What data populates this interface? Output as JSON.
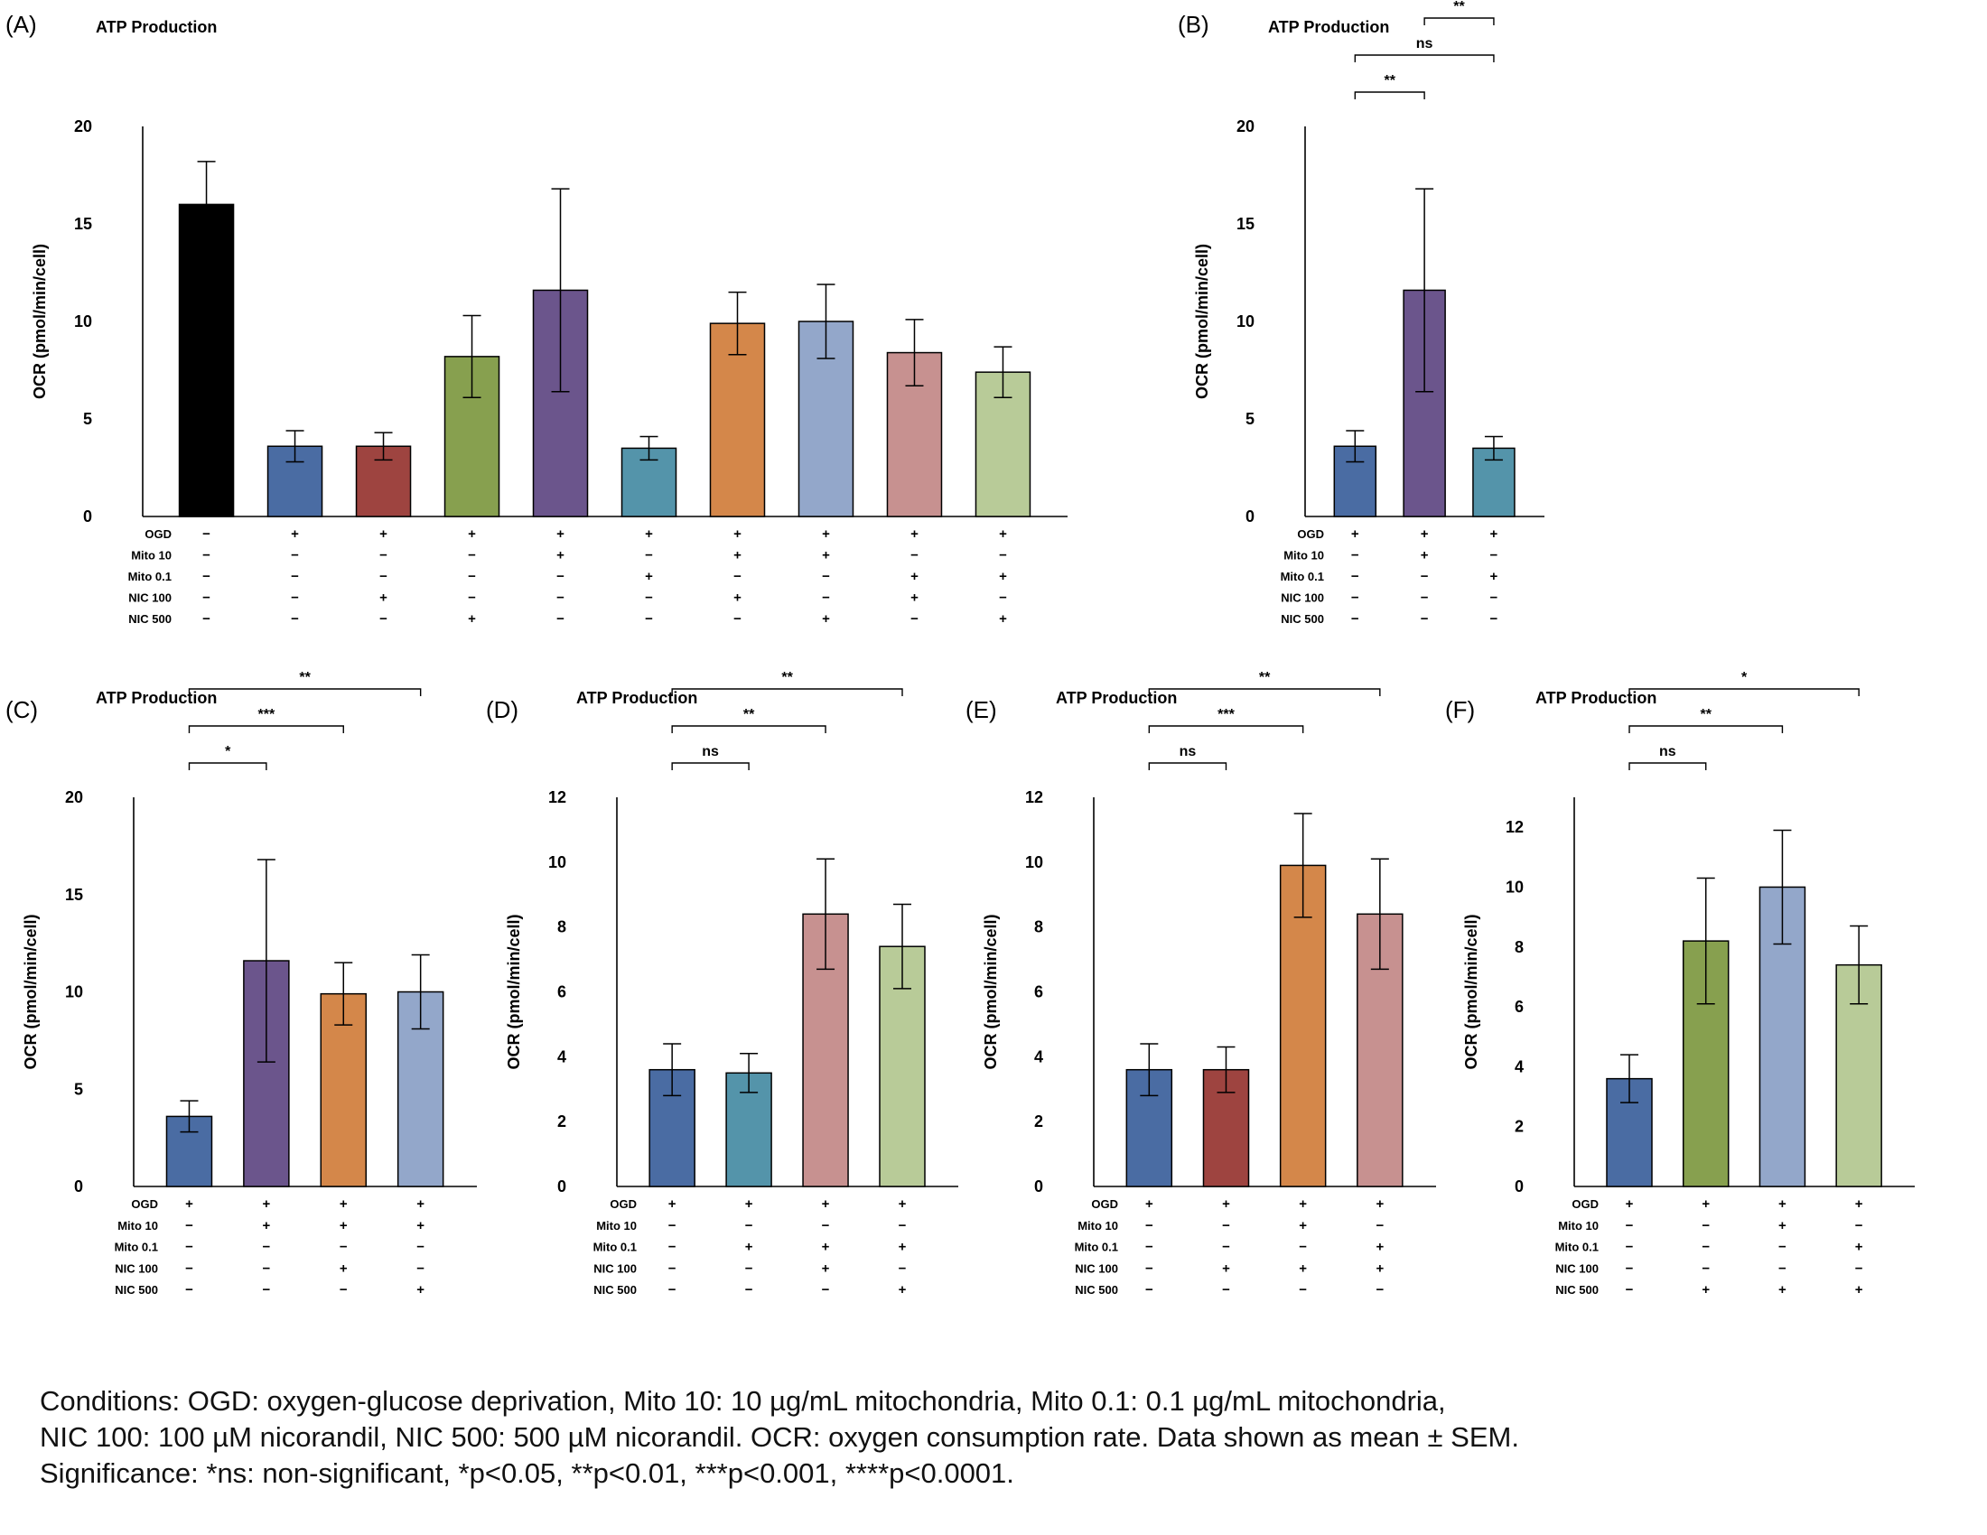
{
  "colors": {
    "Control": "#000000",
    "OGD": "#4a6ca3",
    "OGD+NIC100": "#9e4440",
    "OGD+NIC500": "#87a04f",
    "OGD+Mito10": "#6b558c",
    "OGD+Mito0.1": "#5494aa",
    "OGD+Mito10+NIC100": "#d4874a",
    "OGD+Mito10+NIC500": "#93a7ca",
    "OGD+Mito0.1+NIC100": "#c79190",
    "OGD+Mito0.1+NIC500": "#b8cb98"
  },
  "row_labels": [
    "OGD",
    "Mito 10",
    "Mito 0.1",
    "NIC 100",
    "NIC 500"
  ],
  "caption": {
    "line1": "Conditions: OGD: oxygen-glucose deprivation, Mito 10: 10 µg/mL mitochondria, Mito 0.1: 0.1 µg/mL mitochondria,",
    "line2": "NIC 100: 100 µM nicorandil, NIC 500: 500 µM nicorandil. OCR: oxygen consumption rate. Data shown as mean ± SEM.",
    "line3": "Significance: *ns: non-significant, *p<0.05, **p<0.01, ***p<0.001, ****p<0.0001."
  },
  "chart_data": [
    {
      "id": "A",
      "panel_label": "(A)",
      "type": "bar",
      "title": "ATP Production",
      "xlabel": "",
      "ylabel": "OCR (pmol/min/cell)",
      "ylim": [
        0,
        20
      ],
      "yticks": [
        0,
        5,
        10,
        15,
        20
      ],
      "categories": [
        "Control",
        "OGD",
        "OGD+NIC100",
        "OGD+NIC500",
        "OGD+Mito10",
        "OGD+Mito0.1",
        "OGD+Mito10+NIC100",
        "OGD+Mito10+NIC500",
        "OGD+Mito0.1+NIC100",
        "OGD+Mito0.1+NIC500"
      ],
      "values": [
        16.0,
        3.6,
        3.6,
        8.2,
        11.6,
        3.5,
        9.9,
        10.0,
        8.4,
        7.4
      ],
      "errors": [
        2.2,
        0.8,
        0.7,
        2.1,
        5.2,
        0.6,
        1.6,
        1.9,
        1.7,
        1.3
      ],
      "conditions": [
        [
          "−",
          "−",
          "−",
          "−",
          "−"
        ],
        [
          "+",
          "−",
          "−",
          "−",
          "−"
        ],
        [
          "+",
          "−",
          "−",
          "+",
          "−"
        ],
        [
          "+",
          "−",
          "−",
          "−",
          "+"
        ],
        [
          "+",
          "+",
          "−",
          "−",
          "−"
        ],
        [
          "+",
          "−",
          "+",
          "−",
          "−"
        ],
        [
          "+",
          "+",
          "−",
          "+",
          "−"
        ],
        [
          "+",
          "+",
          "−",
          "−",
          "+"
        ],
        [
          "+",
          "−",
          "+",
          "+",
          "−"
        ],
        [
          "+",
          "−",
          "+",
          "−",
          "+"
        ]
      ],
      "brackets": []
    },
    {
      "id": "B",
      "panel_label": "(B)",
      "type": "bar",
      "title": "ATP Production",
      "xlabel": "",
      "ylabel": "OCR (pmol/min/cell)",
      "ylim": [
        0,
        20
      ],
      "yticks": [
        0,
        5,
        10,
        15,
        20
      ],
      "categories": [
        "OGD",
        "OGD+Mito10",
        "OGD+Mito0.1"
      ],
      "values": [
        3.6,
        11.6,
        3.5
      ],
      "errors": [
        0.8,
        5.2,
        0.6
      ],
      "conditions": [
        [
          "+",
          "−",
          "−",
          "−",
          "−"
        ],
        [
          "+",
          "+",
          "−",
          "−",
          "−"
        ],
        [
          "+",
          "−",
          "+",
          "−",
          "−"
        ]
      ],
      "brackets": [
        {
          "from": 0,
          "to": 1,
          "label": "**"
        },
        {
          "from": 0,
          "to": 2,
          "label": "ns"
        },
        {
          "from": 1,
          "to": 2,
          "label": "**"
        }
      ]
    },
    {
      "id": "C",
      "panel_label": "(C)",
      "type": "bar",
      "title": "ATP Production",
      "xlabel": "",
      "ylabel": "OCR (pmol/min/cell)",
      "ylim": [
        0,
        20
      ],
      "yticks": [
        0,
        5,
        10,
        15,
        20
      ],
      "categories": [
        "OGD",
        "OGD+Mito10",
        "OGD+Mito10+NIC100",
        "OGD+Mito10+NIC500"
      ],
      "values": [
        3.6,
        11.6,
        9.9,
        10.0
      ],
      "errors": [
        0.8,
        5.2,
        1.6,
        1.9
      ],
      "conditions": [
        [
          "+",
          "−",
          "−",
          "−",
          "−"
        ],
        [
          "+",
          "+",
          "−",
          "−",
          "−"
        ],
        [
          "+",
          "+",
          "−",
          "+",
          "−"
        ],
        [
          "+",
          "+",
          "−",
          "−",
          "+"
        ]
      ],
      "brackets": [
        {
          "from": 0,
          "to": 1,
          "label": "*"
        },
        {
          "from": 0,
          "to": 2,
          "label": "***"
        },
        {
          "from": 0,
          "to": 3,
          "label": "**"
        }
      ]
    },
    {
      "id": "D",
      "panel_label": "(D)",
      "type": "bar",
      "title": "ATP Production",
      "xlabel": "",
      "ylabel": "OCR (pmol/min/cell)",
      "ylim": [
        0,
        12
      ],
      "yticks": [
        0,
        2,
        4,
        6,
        8,
        10,
        12
      ],
      "categories": [
        "OGD",
        "OGD+Mito0.1",
        "OGD+Mito0.1+NIC100",
        "OGD+Mito0.1+NIC500"
      ],
      "values": [
        3.6,
        3.5,
        8.4,
        7.4
      ],
      "errors": [
        0.8,
        0.6,
        1.7,
        1.3
      ],
      "conditions": [
        [
          "+",
          "−",
          "−",
          "−",
          "−"
        ],
        [
          "+",
          "−",
          "+",
          "−",
          "−"
        ],
        [
          "+",
          "−",
          "+",
          "+",
          "−"
        ],
        [
          "+",
          "−",
          "+",
          "−",
          "+"
        ]
      ],
      "brackets": [
        {
          "from": 0,
          "to": 1,
          "label": "ns"
        },
        {
          "from": 0,
          "to": 2,
          "label": "**"
        },
        {
          "from": 0,
          "to": 3,
          "label": "**"
        }
      ]
    },
    {
      "id": "E",
      "panel_label": "(E)",
      "type": "bar",
      "title": "ATP Production",
      "xlabel": "",
      "ylabel": "OCR (pmol/min/cell)",
      "ylim": [
        0,
        12
      ],
      "yticks": [
        0,
        2,
        4,
        6,
        8,
        10,
        12
      ],
      "categories": [
        "OGD",
        "OGD+NIC100",
        "OGD+Mito10+NIC100",
        "OGD+Mito0.1+NIC100"
      ],
      "values": [
        3.6,
        3.6,
        9.9,
        8.4
      ],
      "errors": [
        0.8,
        0.7,
        1.6,
        1.7
      ],
      "conditions": [
        [
          "+",
          "−",
          "−",
          "−",
          "−"
        ],
        [
          "+",
          "−",
          "−",
          "+",
          "−"
        ],
        [
          "+",
          "+",
          "−",
          "+",
          "−"
        ],
        [
          "+",
          "−",
          "+",
          "+",
          "−"
        ]
      ],
      "brackets": [
        {
          "from": 0,
          "to": 1,
          "label": "ns"
        },
        {
          "from": 0,
          "to": 2,
          "label": "***"
        },
        {
          "from": 0,
          "to": 3,
          "label": "**"
        }
      ]
    },
    {
      "id": "F",
      "panel_label": "(F)",
      "type": "bar",
      "title": "ATP Production",
      "xlabel": "",
      "ylabel": "OCR (pmol/min/cell)",
      "ylim": [
        0,
        13
      ],
      "yticks": [
        0,
        2,
        4,
        6,
        8,
        10,
        12
      ],
      "categories": [
        "OGD",
        "OGD+NIC500",
        "OGD+Mito10+NIC500",
        "OGD+Mito0.1+NIC500"
      ],
      "values": [
        3.6,
        8.2,
        10.0,
        7.4
      ],
      "errors": [
        0.8,
        2.1,
        1.9,
        1.3
      ],
      "conditions": [
        [
          "+",
          "−",
          "−",
          "−",
          "−"
        ],
        [
          "+",
          "−",
          "−",
          "−",
          "+"
        ],
        [
          "+",
          "+",
          "−",
          "−",
          "+"
        ],
        [
          "+",
          "−",
          "+",
          "−",
          "+"
        ]
      ],
      "brackets": [
        {
          "from": 0,
          "to": 1,
          "label": "ns"
        },
        {
          "from": 0,
          "to": 2,
          "label": "**"
        },
        {
          "from": 0,
          "to": 3,
          "label": "*"
        }
      ]
    }
  ]
}
